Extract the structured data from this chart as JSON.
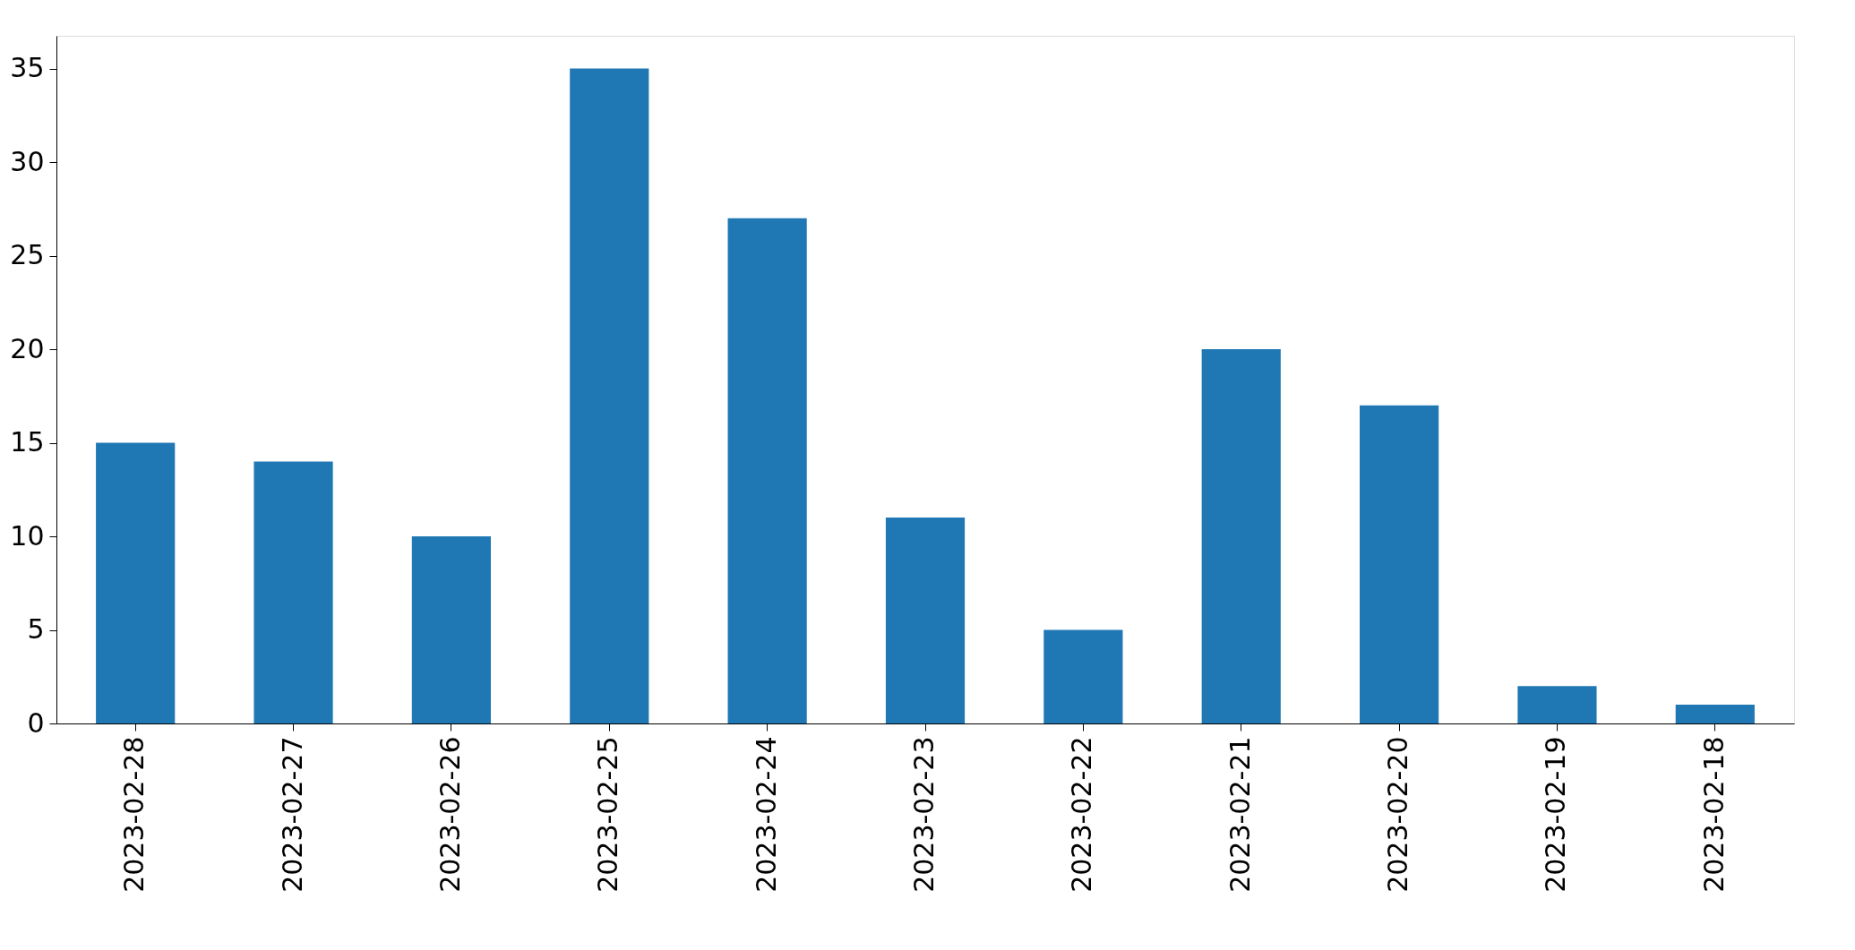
{
  "chart_data": {
    "type": "bar",
    "categories": [
      "2023-02-28",
      "2023-02-27",
      "2023-02-26",
      "2023-02-25",
      "2023-02-24",
      "2023-02-23",
      "2023-02-22",
      "2023-02-21",
      "2023-02-20",
      "2023-02-19",
      "2023-02-18"
    ],
    "values": [
      15,
      14,
      10,
      35,
      27,
      11,
      5,
      20,
      17,
      2,
      1
    ],
    "color": "#1f77b4",
    "ylim": [
      0,
      36.75
    ],
    "yticks": [
      0,
      5,
      10,
      15,
      20,
      25,
      30,
      35
    ],
    "grid": false
  }
}
